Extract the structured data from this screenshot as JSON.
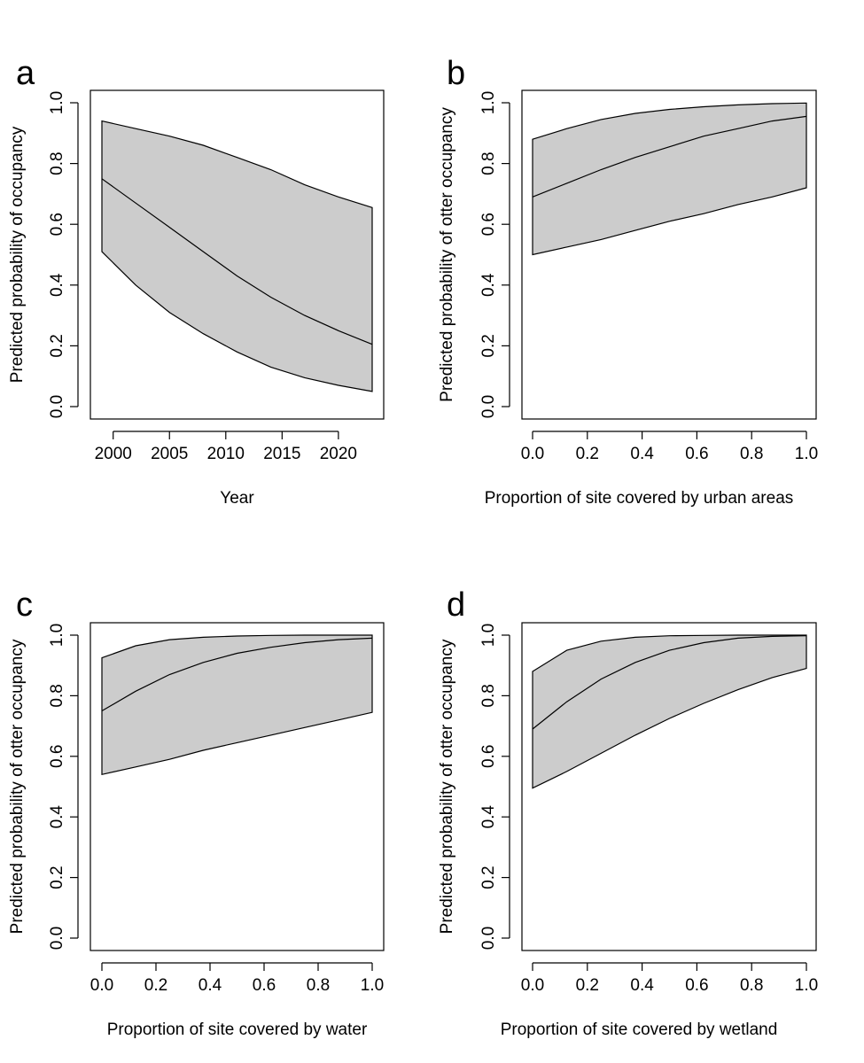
{
  "chart_data": [
    {
      "type": "area",
      "panel_label": "a",
      "xlabel": "Year",
      "ylabel": "Predicted probability of occupancy",
      "xlim": [
        1999,
        2023
      ],
      "ylim": [
        0,
        1
      ],
      "xticks": [
        2000,
        2005,
        2010,
        2015,
        2020
      ],
      "xtick_labels": [
        "2000",
        "2005",
        "2010",
        "2015",
        "2020"
      ],
      "yticks": [
        0,
        0.2,
        0.4,
        0.6,
        0.8,
        1
      ],
      "ytick_labels": [
        "0.0",
        "0.2",
        "0.4",
        "0.6",
        "0.8",
        "1.0"
      ],
      "ribbon_color": "#cccccc",
      "x": [
        1999,
        2002,
        2005,
        2008,
        2011,
        2014,
        2017,
        2020,
        2023
      ],
      "series": [
        {
          "role": "upper",
          "values": [
            0.94,
            0.915,
            0.89,
            0.86,
            0.82,
            0.78,
            0.73,
            0.69,
            0.655
          ]
        },
        {
          "role": "fit",
          "values": [
            0.75,
            0.67,
            0.59,
            0.51,
            0.43,
            0.36,
            0.3,
            0.25,
            0.205
          ]
        },
        {
          "role": "lower",
          "values": [
            0.51,
            0.4,
            0.31,
            0.24,
            0.18,
            0.13,
            0.095,
            0.07,
            0.05
          ]
        }
      ]
    },
    {
      "type": "area",
      "panel_label": "b",
      "xlabel": "Proportion of site covered by urban areas",
      "ylabel": "Predicted probability of otter occupancy",
      "xlim": [
        0,
        1
      ],
      "ylim": [
        0,
        1
      ],
      "xticks": [
        0,
        0.2,
        0.4,
        0.6,
        0.8,
        1
      ],
      "xtick_labels": [
        "0.0",
        "0.2",
        "0.4",
        "0.6",
        "0.8",
        "1.0"
      ],
      "yticks": [
        0,
        0.2,
        0.4,
        0.6,
        0.8,
        1
      ],
      "ytick_labels": [
        "0.0",
        "0.2",
        "0.4",
        "0.6",
        "0.8",
        "1.0"
      ],
      "ribbon_color": "#cccccc",
      "x": [
        0,
        0.125,
        0.25,
        0.375,
        0.5,
        0.625,
        0.75,
        0.875,
        1
      ],
      "series": [
        {
          "role": "upper",
          "values": [
            0.88,
            0.915,
            0.945,
            0.965,
            0.978,
            0.987,
            0.993,
            0.997,
            0.999
          ]
        },
        {
          "role": "fit",
          "values": [
            0.69,
            0.735,
            0.78,
            0.82,
            0.855,
            0.89,
            0.915,
            0.94,
            0.955
          ]
        },
        {
          "role": "lower",
          "values": [
            0.5,
            0.525,
            0.55,
            0.58,
            0.61,
            0.635,
            0.665,
            0.69,
            0.72
          ]
        }
      ]
    },
    {
      "type": "area",
      "panel_label": "c",
      "xlabel": "Proportion of site covered by water",
      "ylabel": "Predicted probability of otter occupancy",
      "xlim": [
        0,
        1
      ],
      "ylim": [
        0,
        1
      ],
      "xticks": [
        0,
        0.2,
        0.4,
        0.6,
        0.8,
        1
      ],
      "xtick_labels": [
        "0.0",
        "0.2",
        "0.4",
        "0.6",
        "0.8",
        "1.0"
      ],
      "yticks": [
        0,
        0.2,
        0.4,
        0.6,
        0.8,
        1
      ],
      "ytick_labels": [
        "0.0",
        "0.2",
        "0.4",
        "0.6",
        "0.8",
        "1.0"
      ],
      "ribbon_color": "#cccccc",
      "x": [
        0,
        0.125,
        0.25,
        0.375,
        0.5,
        0.625,
        0.75,
        0.875,
        1
      ],
      "series": [
        {
          "role": "upper",
          "values": [
            0.925,
            0.965,
            0.985,
            0.993,
            0.997,
            0.999,
            1.0,
            1.0,
            1.0
          ]
        },
        {
          "role": "fit",
          "values": [
            0.75,
            0.815,
            0.87,
            0.91,
            0.94,
            0.96,
            0.975,
            0.985,
            0.99
          ]
        },
        {
          "role": "lower",
          "values": [
            0.54,
            0.565,
            0.59,
            0.62,
            0.645,
            0.67,
            0.695,
            0.72,
            0.745
          ]
        }
      ]
    },
    {
      "type": "area",
      "panel_label": "d",
      "xlabel": "Proportion of site covered by wetland",
      "ylabel": "Predicted probability of otter occupancy",
      "xlim": [
        0,
        1
      ],
      "ylim": [
        0,
        1
      ],
      "xticks": [
        0,
        0.2,
        0.4,
        0.6,
        0.8,
        1
      ],
      "xtick_labels": [
        "0.0",
        "0.2",
        "0.4",
        "0.6",
        "0.8",
        "1.0"
      ],
      "yticks": [
        0,
        0.2,
        0.4,
        0.6,
        0.8,
        1
      ],
      "ytick_labels": [
        "0.0",
        "0.2",
        "0.4",
        "0.6",
        "0.8",
        "1.0"
      ],
      "ribbon_color": "#cccccc",
      "x": [
        0,
        0.125,
        0.25,
        0.375,
        0.5,
        0.625,
        0.75,
        0.875,
        1
      ],
      "series": [
        {
          "role": "upper",
          "values": [
            0.88,
            0.95,
            0.98,
            0.993,
            0.998,
            0.999,
            1.0,
            1.0,
            1.0
          ]
        },
        {
          "role": "fit",
          "values": [
            0.69,
            0.78,
            0.855,
            0.91,
            0.95,
            0.975,
            0.99,
            0.996,
            0.998
          ]
        },
        {
          "role": "lower",
          "values": [
            0.495,
            0.55,
            0.61,
            0.67,
            0.725,
            0.775,
            0.82,
            0.86,
            0.89
          ]
        }
      ]
    }
  ]
}
